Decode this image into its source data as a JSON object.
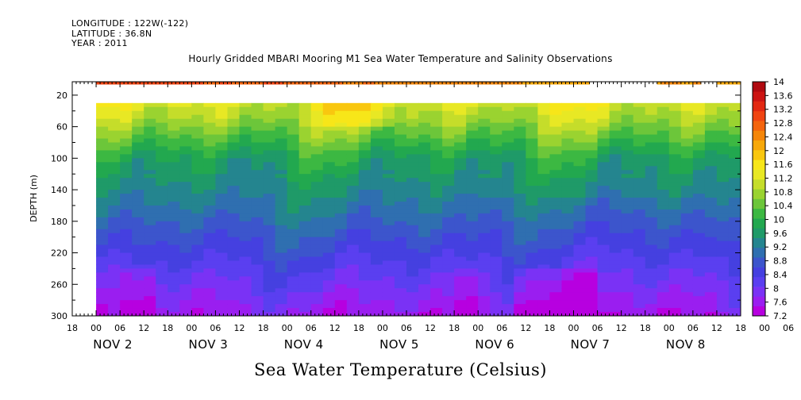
{
  "header": {
    "longitude": "LONGITUDE : 122W(-122)",
    "latitude": "LATITUDE : 36.8N",
    "year": "YEAR : 2011"
  },
  "chart_data": {
    "type": "heatmap",
    "title": "Hourly Gridded MBARI Mooring M1 Sea Water Temperature and Salinity Observations",
    "ylabel": "DEPTH (m)",
    "colorbar_label": "Sea Water Temperature (Celsius)",
    "y_axis": {
      "inverted": true,
      "range": [
        300,
        0
      ],
      "tick_values": [
        20,
        60,
        100,
        140,
        180,
        220,
        260,
        300
      ],
      "tick_labels": [
        "20",
        "60",
        "100",
        "140",
        "180",
        "220",
        "260",
        "300"
      ]
    },
    "x_axis": {
      "hour_tick_labels": [
        "00",
        "06",
        "12",
        "18",
        "00",
        "06",
        "12",
        "18",
        "00",
        "06",
        "12",
        "18",
        "00",
        "06",
        "12",
        "18",
        "00",
        "06",
        "12",
        "18",
        "00",
        "06",
        "12",
        "18",
        "00",
        "06",
        "12",
        "18",
        "00",
        "06",
        "12",
        "18",
        "00",
        "06",
        "12",
        "18",
        "00",
        "06",
        "12",
        "18",
        "00",
        "06",
        "12",
        "18",
        "00",
        "06",
        "12",
        "18"
      ],
      "day_labels": [
        "NOV  2",
        "NOV  3",
        "NOV  4",
        "NOV  5",
        "NOV  6",
        "NOV  7",
        "NOV  8"
      ]
    },
    "colorbar": {
      "levels": [
        7.2,
        7.6,
        8,
        8.4,
        8.8,
        9.2,
        9.6,
        10,
        10.4,
        10.8,
        11.2,
        11.6,
        12,
        12.4,
        12.8,
        13.2,
        13.6,
        14
      ],
      "labels": [
        "7.2",
        "7.6",
        "8",
        "8.4",
        "8.8",
        "9.2",
        "9.6",
        "10",
        "10.4",
        "10.8",
        "11.2",
        "11.6",
        "12",
        "12.4",
        "12.8",
        "13.2",
        "13.6",
        "14"
      ],
      "colors": [
        "#b700e0",
        "#9a1ef0",
        "#7a32f5",
        "#5a3ff0",
        "#4540e0",
        "#3c55cc",
        "#2f6fb0",
        "#24858f",
        "#1f9a68",
        "#22a84f",
        "#3cb842",
        "#6cc63a",
        "#9ad330",
        "#c5dd2a",
        "#e8e824",
        "#f7e619",
        "#f9c70f",
        "#f7a80a",
        "#f5860a",
        "#f4640e",
        "#f04412",
        "#e22812",
        "#cc1412",
        "#b00a10"
      ]
    },
    "surface_temperature_hourly_nov2_to_nov6": "13.0 at start (Nov 2) decreasing to about 12.0 by Nov 6 12Z; no surface data from Nov 6 15Z to Nov 8 00Z; 12.2-12.6 around Nov 8 03Z-13Z",
    "depth_profile_typical": [
      {
        "depth": 40,
        "temperature": 11.2
      },
      {
        "depth": 60,
        "temperature": 10.8
      },
      {
        "depth": 80,
        "temperature": 10.2
      },
      {
        "depth": 100,
        "temperature": 9.8
      },
      {
        "depth": 140,
        "temperature": 9.4
      },
      {
        "depth": 180,
        "temperature": 8.8
      },
      {
        "depth": 220,
        "temperature": 8.4
      },
      {
        "depth": 260,
        "temperature": 8.0
      },
      {
        "depth": 300,
        "temperature": 7.6
      }
    ]
  }
}
